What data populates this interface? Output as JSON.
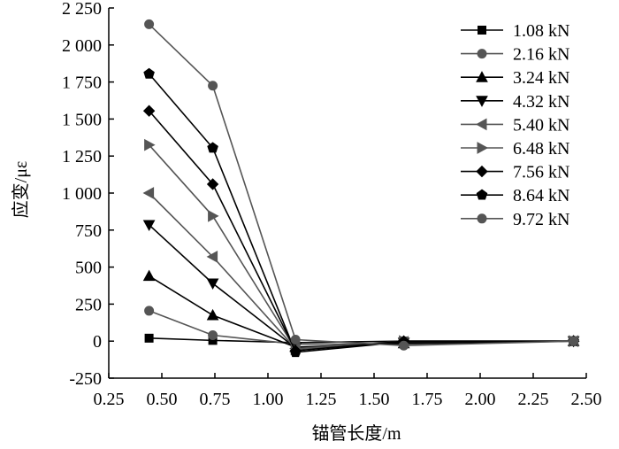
{
  "chart_data": {
    "type": "line",
    "xlabel": "锚管长度/m",
    "ylabel": "应变/με",
    "xlim": [
      0.25,
      2.5
    ],
    "ylim": [
      -250,
      2250
    ],
    "x_ticks": [
      {
        "value": 0.25,
        "label": "0.25"
      },
      {
        "value": 0.5,
        "label": "0.50"
      },
      {
        "value": 0.75,
        "label": "0.75"
      },
      {
        "value": 1.0,
        "label": "1.00"
      },
      {
        "value": 1.25,
        "label": "1.25"
      },
      {
        "value": 1.5,
        "label": "1.50"
      },
      {
        "value": 1.75,
        "label": "1.75"
      },
      {
        "value": 2.0,
        "label": "2.00"
      },
      {
        "value": 2.25,
        "label": "2.25"
      },
      {
        "value": 2.5,
        "label": "2.50"
      }
    ],
    "y_ticks": [
      {
        "value": -250,
        "label": "-250"
      },
      {
        "value": 0,
        "label": "0"
      },
      {
        "value": 250,
        "label": "250"
      },
      {
        "value": 500,
        "label": "500"
      },
      {
        "value": 750,
        "label": "750"
      },
      {
        "value": 1000,
        "label": "1 000"
      },
      {
        "value": 1250,
        "label": "1 250"
      },
      {
        "value": 1500,
        "label": "1 500"
      },
      {
        "value": 1750,
        "label": "1 750"
      },
      {
        "value": 2000,
        "label": "2 000"
      },
      {
        "value": 2250,
        "label": "2 250"
      }
    ],
    "grid": false,
    "legend_position": "top-right",
    "x": [
      0.44,
      0.74,
      1.13,
      1.64,
      2.44
    ],
    "series": [
      {
        "name": "1.08 kN",
        "marker": "square",
        "color": "#000000",
        "values": [
          20,
          5,
          -10,
          0,
          0
        ]
      },
      {
        "name": "2.16 kN",
        "marker": "circle",
        "color": "#555555",
        "values": [
          205,
          40,
          -20,
          -20,
          0
        ]
      },
      {
        "name": "3.24 kN",
        "marker": "triangle-up",
        "color": "#000000",
        "values": [
          440,
          175,
          -40,
          -15,
          0
        ]
      },
      {
        "name": "4.32 kN",
        "marker": "triangle-down",
        "color": "#000000",
        "values": [
          785,
          390,
          -45,
          -10,
          0
        ]
      },
      {
        "name": "5.40 kN",
        "marker": "triangle-left",
        "color": "#555555",
        "values": [
          1000,
          570,
          -50,
          -5,
          0
        ]
      },
      {
        "name": "6.48 kN",
        "marker": "triangle-right",
        "color": "#555555",
        "values": [
          1325,
          845,
          -55,
          0,
          0
        ]
      },
      {
        "name": "7.56 kN",
        "marker": "diamond",
        "color": "#000000",
        "values": [
          1555,
          1060,
          -65,
          0,
          0
        ]
      },
      {
        "name": "8.64 kN",
        "marker": "pentagon",
        "color": "#000000",
        "values": [
          1805,
          1305,
          -75,
          -5,
          0
        ]
      },
      {
        "name": "9.72 kN",
        "marker": "circle",
        "color": "#555555",
        "values": [
          2140,
          1725,
          10,
          -30,
          0
        ]
      }
    ]
  }
}
